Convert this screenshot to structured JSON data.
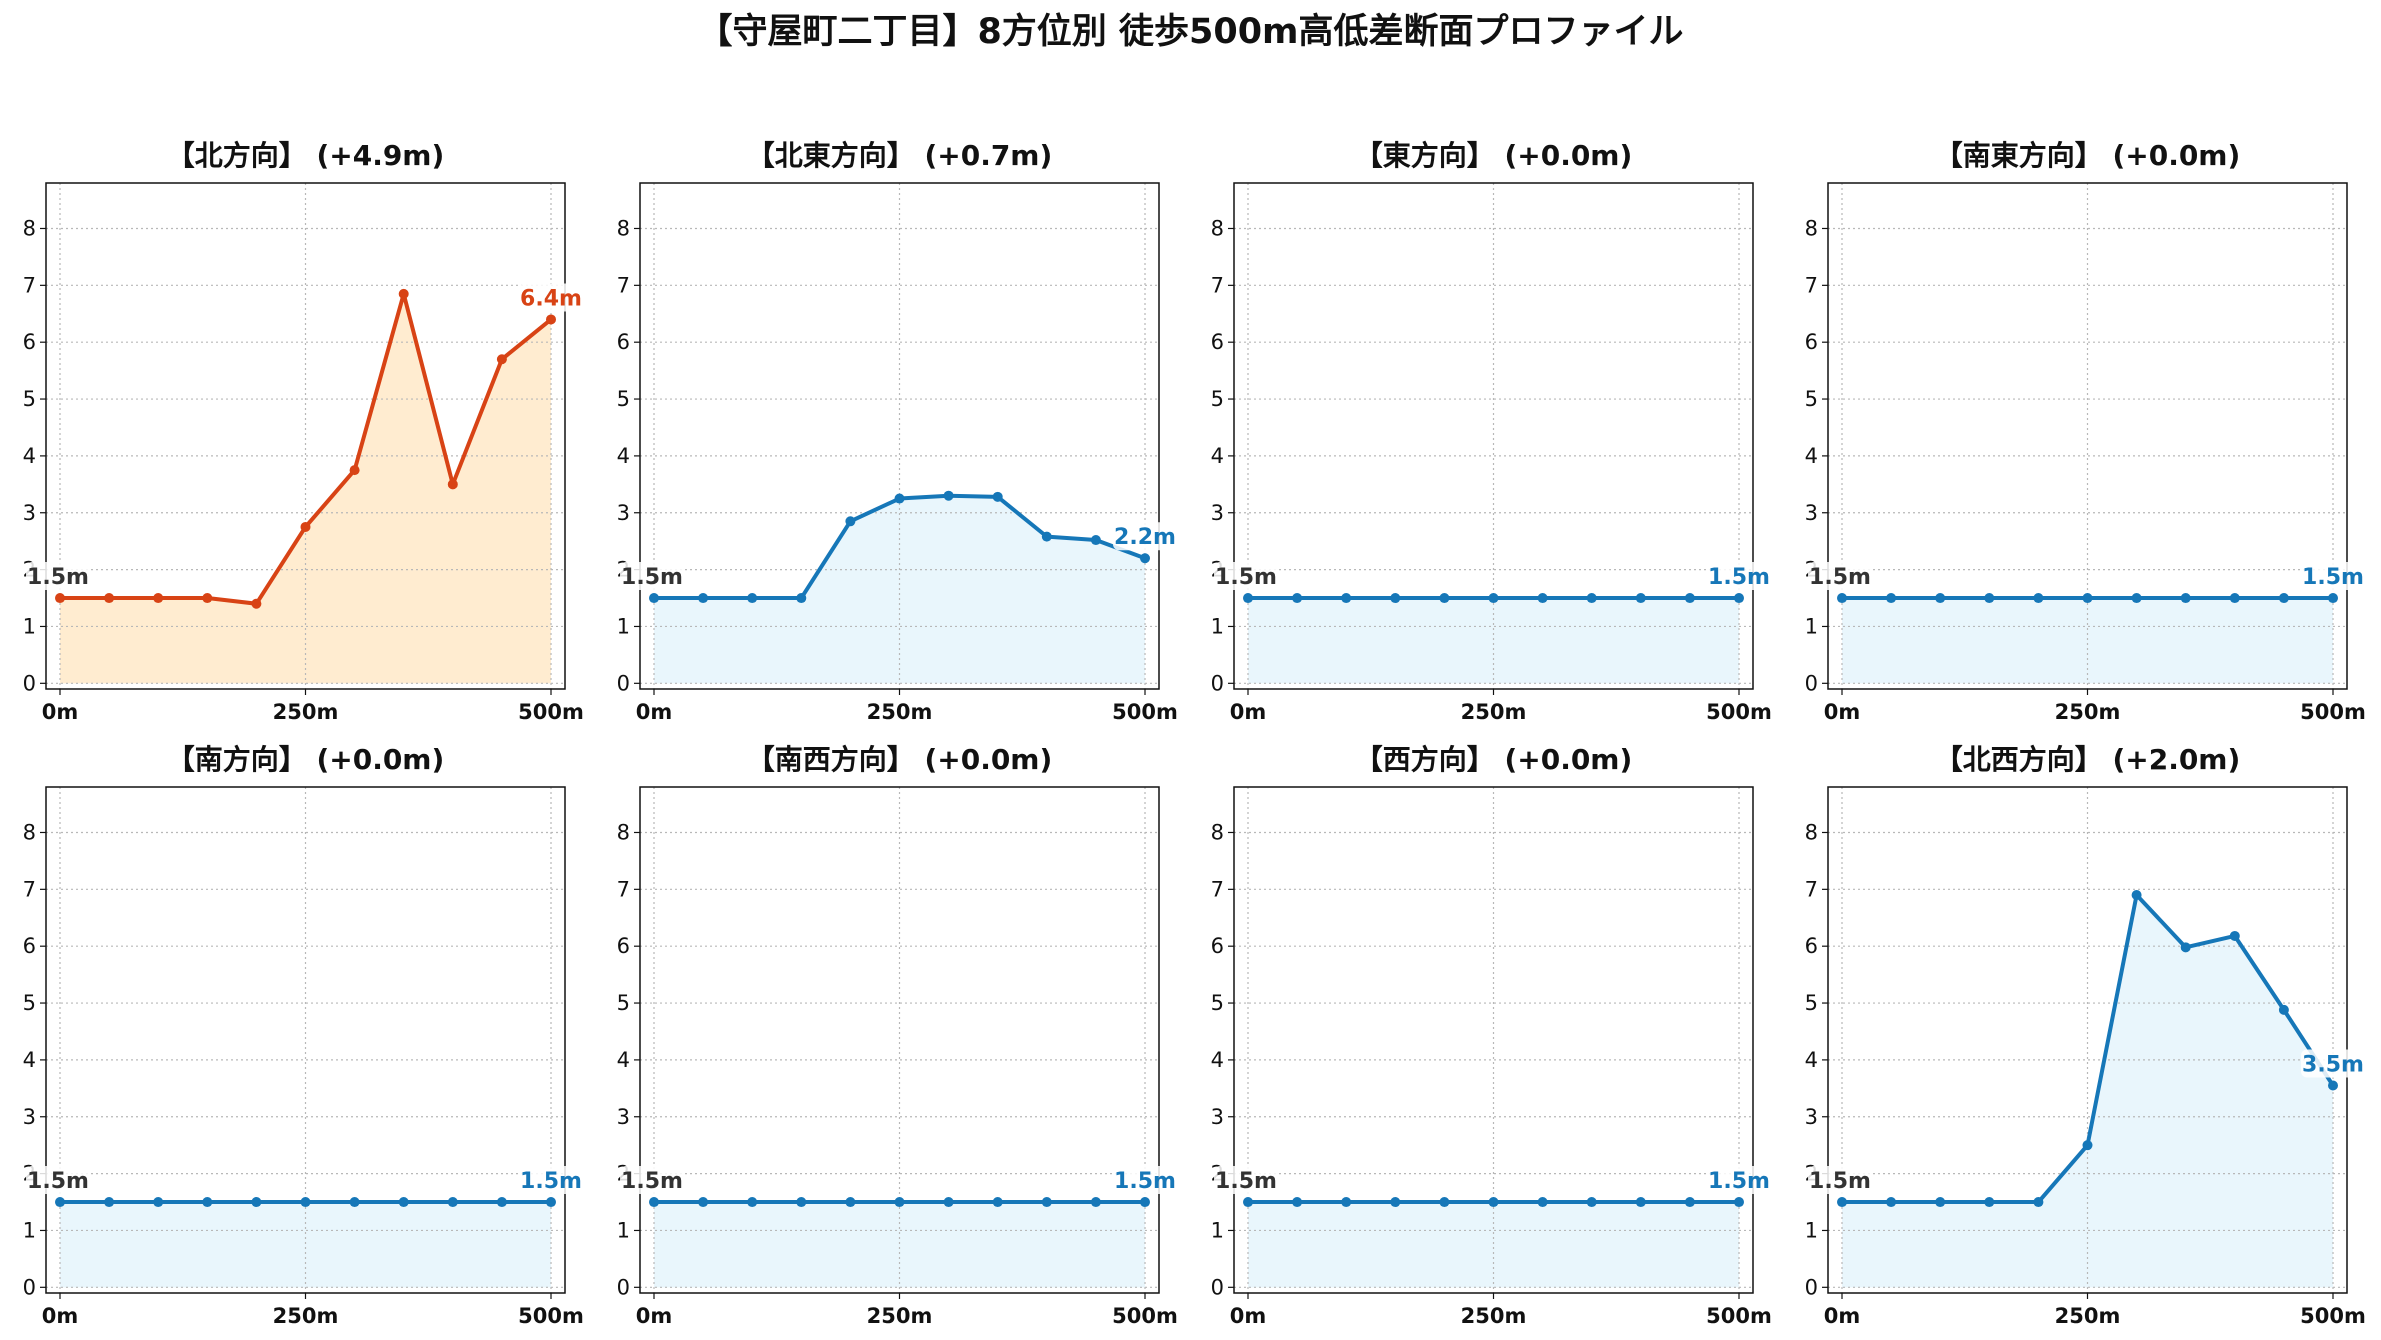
{
  "title": "【守屋町二丁目】8方位別 徒歩500m高低差断面プロファイル",
  "colors": {
    "highlight_line": "#d84315",
    "highlight_fill": "#ffecd0",
    "normal_line": "#1677b8",
    "normal_fill": "#e9f6fc",
    "start_label": "#333333",
    "grid": "#b8b8b8"
  },
  "chart_data": [
    {
      "type": "area",
      "title": "【北方向】 (+4.9m)",
      "highlight": true,
      "x_ticks": [
        "0m",
        "250m",
        "500m"
      ],
      "x": [
        0,
        50,
        100,
        150,
        200,
        250,
        300,
        350,
        400,
        450,
        500
      ],
      "values": [
        1.5,
        1.5,
        1.5,
        1.5,
        1.4,
        2.75,
        3.75,
        6.85,
        3.5,
        5.7,
        6.4
      ],
      "start_label": "1.5m",
      "end_label": "6.4m",
      "ylim": [
        -0.1,
        8.8
      ],
      "yticks": [
        0,
        1,
        2,
        3,
        4,
        5,
        6,
        7,
        8
      ],
      "grid": true
    },
    {
      "type": "area",
      "title": "【北東方向】 (+0.7m)",
      "highlight": false,
      "x_ticks": [
        "0m",
        "250m",
        "500m"
      ],
      "x": [
        0,
        50,
        100,
        150,
        200,
        250,
        300,
        350,
        400,
        450,
        500
      ],
      "values": [
        1.5,
        1.5,
        1.5,
        1.5,
        2.85,
        3.25,
        3.3,
        3.28,
        2.58,
        2.52,
        2.2
      ],
      "start_label": "1.5m",
      "end_label": "2.2m",
      "ylim": [
        -0.1,
        8.8
      ],
      "yticks": [
        0,
        1,
        2,
        3,
        4,
        5,
        6,
        7,
        8
      ],
      "grid": true
    },
    {
      "type": "area",
      "title": "【東方向】 (+0.0m)",
      "highlight": false,
      "x_ticks": [
        "0m",
        "250m",
        "500m"
      ],
      "x": [
        0,
        50,
        100,
        150,
        200,
        250,
        300,
        350,
        400,
        450,
        500
      ],
      "values": [
        1.5,
        1.5,
        1.5,
        1.5,
        1.5,
        1.5,
        1.5,
        1.5,
        1.5,
        1.5,
        1.5
      ],
      "start_label": "1.5m",
      "end_label": "1.5m",
      "ylim": [
        -0.1,
        8.8
      ],
      "yticks": [
        0,
        1,
        2,
        3,
        4,
        5,
        6,
        7,
        8
      ],
      "grid": true
    },
    {
      "type": "area",
      "title": "【南東方向】 (+0.0m)",
      "highlight": false,
      "x_ticks": [
        "0m",
        "250m",
        "500m"
      ],
      "x": [
        0,
        50,
        100,
        150,
        200,
        250,
        300,
        350,
        400,
        450,
        500
      ],
      "values": [
        1.5,
        1.5,
        1.5,
        1.5,
        1.5,
        1.5,
        1.5,
        1.5,
        1.5,
        1.5,
        1.5
      ],
      "start_label": "1.5m",
      "end_label": "1.5m",
      "ylim": [
        -0.1,
        8.8
      ],
      "yticks": [
        0,
        1,
        2,
        3,
        4,
        5,
        6,
        7,
        8
      ],
      "grid": true
    },
    {
      "type": "area",
      "title": "【南方向】 (+0.0m)",
      "highlight": false,
      "x_ticks": [
        "0m",
        "250m",
        "500m"
      ],
      "x": [
        0,
        50,
        100,
        150,
        200,
        250,
        300,
        350,
        400,
        450,
        500
      ],
      "values": [
        1.5,
        1.5,
        1.5,
        1.5,
        1.5,
        1.5,
        1.5,
        1.5,
        1.5,
        1.5,
        1.5
      ],
      "start_label": "1.5m",
      "end_label": "1.5m",
      "ylim": [
        -0.1,
        8.8
      ],
      "yticks": [
        0,
        1,
        2,
        3,
        4,
        5,
        6,
        7,
        8
      ],
      "grid": true
    },
    {
      "type": "area",
      "title": "【南西方向】 (+0.0m)",
      "highlight": false,
      "x_ticks": [
        "0m",
        "250m",
        "500m"
      ],
      "x": [
        0,
        50,
        100,
        150,
        200,
        250,
        300,
        350,
        400,
        450,
        500
      ],
      "values": [
        1.5,
        1.5,
        1.5,
        1.5,
        1.5,
        1.5,
        1.5,
        1.5,
        1.5,
        1.5,
        1.5
      ],
      "start_label": "1.5m",
      "end_label": "1.5m",
      "ylim": [
        -0.1,
        8.8
      ],
      "yticks": [
        0,
        1,
        2,
        3,
        4,
        5,
        6,
        7,
        8
      ],
      "grid": true
    },
    {
      "type": "area",
      "title": "【西方向】 (+0.0m)",
      "highlight": false,
      "x_ticks": [
        "0m",
        "250m",
        "500m"
      ],
      "x": [
        0,
        50,
        100,
        150,
        200,
        250,
        300,
        350,
        400,
        450,
        500
      ],
      "values": [
        1.5,
        1.5,
        1.5,
        1.5,
        1.5,
        1.5,
        1.5,
        1.5,
        1.5,
        1.5,
        1.5
      ],
      "start_label": "1.5m",
      "end_label": "1.5m",
      "ylim": [
        -0.1,
        8.8
      ],
      "yticks": [
        0,
        1,
        2,
        3,
        4,
        5,
        6,
        7,
        8
      ],
      "grid": true
    },
    {
      "type": "area",
      "title": "【北西方向】 (+2.0m)",
      "highlight": false,
      "x_ticks": [
        "0m",
        "250m",
        "500m"
      ],
      "x": [
        0,
        50,
        100,
        150,
        200,
        250,
        300,
        350,
        400,
        450,
        500
      ],
      "values": [
        1.5,
        1.5,
        1.5,
        1.5,
        1.5,
        2.5,
        6.9,
        5.98,
        6.18,
        4.88,
        3.55
      ],
      "start_label": "1.5m",
      "end_label": "3.5m",
      "ylim": [
        -0.1,
        8.8
      ],
      "yticks": [
        0,
        1,
        2,
        3,
        4,
        5,
        6,
        7,
        8
      ],
      "grid": true
    }
  ]
}
